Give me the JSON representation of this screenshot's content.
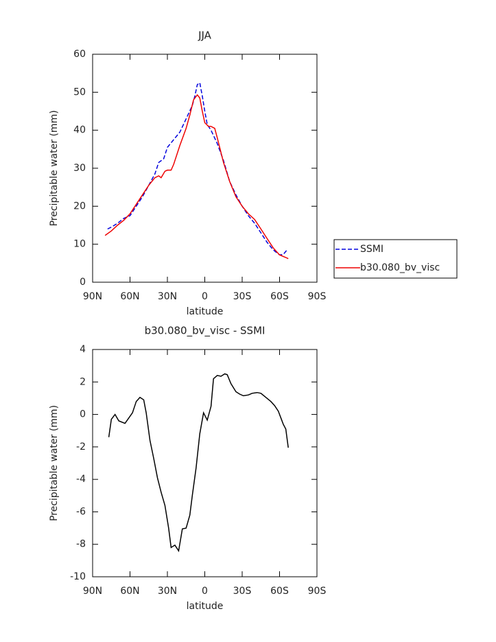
{
  "chart_data": [
    {
      "type": "line",
      "title": "JJA",
      "xlabel": "latitude",
      "ylabel": "Precipitable water (mm)",
      "xlim": [
        90,
        -90
      ],
      "ylim": [
        0,
        60
      ],
      "xticks": [
        {
          "value": 90,
          "label": "90N"
        },
        {
          "value": 60,
          "label": "60N"
        },
        {
          "value": 30,
          "label": "30N"
        },
        0,
        {
          "value": -30,
          "label": "30S"
        },
        {
          "value": -60,
          "label": "60S"
        },
        {
          "value": -90,
          "label": "90S"
        }
      ],
      "yticks": [
        0,
        10,
        20,
        30,
        40,
        50,
        60
      ],
      "legend": "right",
      "series": [
        {
          "name": "SSMI",
          "color": "#0000dd",
          "dashed": true,
          "x": [
            78,
            75,
            70,
            65,
            60,
            55,
            50,
            45,
            40,
            37,
            33,
            30,
            25,
            20,
            15,
            10,
            8,
            6,
            4,
            2,
            0,
            -2,
            -5,
            -10,
            -15,
            -20,
            -25,
            -30,
            -35,
            -40,
            -45,
            -50,
            -55,
            -60,
            -63,
            -66
          ],
          "values": [
            14,
            14.5,
            15.5,
            16.8,
            17.5,
            20,
            22.5,
            25.5,
            28.5,
            31.5,
            32.5,
            35.5,
            37.5,
            39.5,
            43,
            46.5,
            49,
            52,
            52.5,
            49,
            45,
            41.5,
            40,
            36.5,
            32,
            26.5,
            23,
            20,
            17.5,
            15.5,
            13,
            10.5,
            8.5,
            7.2,
            7.3,
            8.5
          ]
        },
        {
          "name": "b30.080_bv_visc",
          "color": "#ee0000",
          "dashed": false,
          "x": [
            80,
            75,
            70,
            65,
            60,
            55,
            50,
            45,
            40,
            37,
            35,
            32,
            30,
            27,
            25,
            20,
            15,
            12,
            9,
            6,
            4,
            2,
            0,
            -3,
            -5,
            -8,
            -10,
            -15,
            -20,
            -25,
            -30,
            -35,
            -40,
            -45,
            -50,
            -55,
            -60,
            -65,
            -67
          ],
          "values": [
            12.3,
            13.5,
            15,
            16.3,
            18,
            20.5,
            23,
            25.5,
            27.5,
            28,
            27.5,
            29.2,
            29.5,
            29.5,
            31,
            36,
            40.5,
            44,
            48,
            49.3,
            48.5,
            45,
            42,
            41,
            41,
            40.5,
            38,
            31.5,
            26.5,
            22.5,
            20,
            18,
            16.5,
            14,
            11.5,
            9,
            7.2,
            6.5,
            6.2
          ]
        }
      ]
    },
    {
      "type": "line",
      "title": "b30.080_bv_visc - SSMI",
      "xlabel": "latitude",
      "ylabel": "Precipitable water (mm)",
      "xlim": [
        90,
        -90
      ],
      "ylim": [
        -10,
        4
      ],
      "xticks": [
        {
          "value": 90,
          "label": "90N"
        },
        {
          "value": 60,
          "label": "60N"
        },
        {
          "value": 30,
          "label": "30N"
        },
        0,
        {
          "value": -30,
          "label": "30S"
        },
        {
          "value": -60,
          "label": "60S"
        },
        {
          "value": -90,
          "label": "90S"
        }
      ],
      "yticks": [
        -10,
        -8,
        -6,
        -4,
        -2,
        0,
        2,
        4
      ],
      "series": [
        {
          "color": "#000000",
          "dashed": false,
          "x": [
            77,
            75,
            72,
            69,
            64,
            58,
            55,
            52,
            49,
            47,
            44,
            41,
            38,
            35,
            32,
            29,
            27,
            24,
            21,
            18,
            15,
            12,
            10,
            7,
            4,
            1,
            -2,
            -5,
            -7,
            -10,
            -13,
            -16,
            -18,
            -21,
            -25,
            -28,
            -31,
            -35,
            -38,
            -42,
            -45,
            -49,
            -53,
            -56,
            -59,
            -61,
            -63,
            -65,
            -67
          ],
          "values": [
            -1.4,
            -0.3,
            0,
            -0.4,
            -0.55,
            0.1,
            0.8,
            1.05,
            0.9,
            0.1,
            -1.6,
            -2.7,
            -3.9,
            -4.8,
            -5.6,
            -7,
            -8.2,
            -8.05,
            -8.4,
            -7.05,
            -7,
            -6.2,
            -5,
            -3.3,
            -1.2,
            0.1,
            -0.35,
            0.5,
            2.2,
            2.4,
            2.35,
            2.5,
            2.45,
            1.9,
            1.4,
            1.25,
            1.15,
            1.2,
            1.3,
            1.35,
            1.3,
            1.05,
            0.8,
            0.55,
            0.2,
            -0.2,
            -0.6,
            -0.9,
            -2.05
          ]
        }
      ]
    }
  ]
}
